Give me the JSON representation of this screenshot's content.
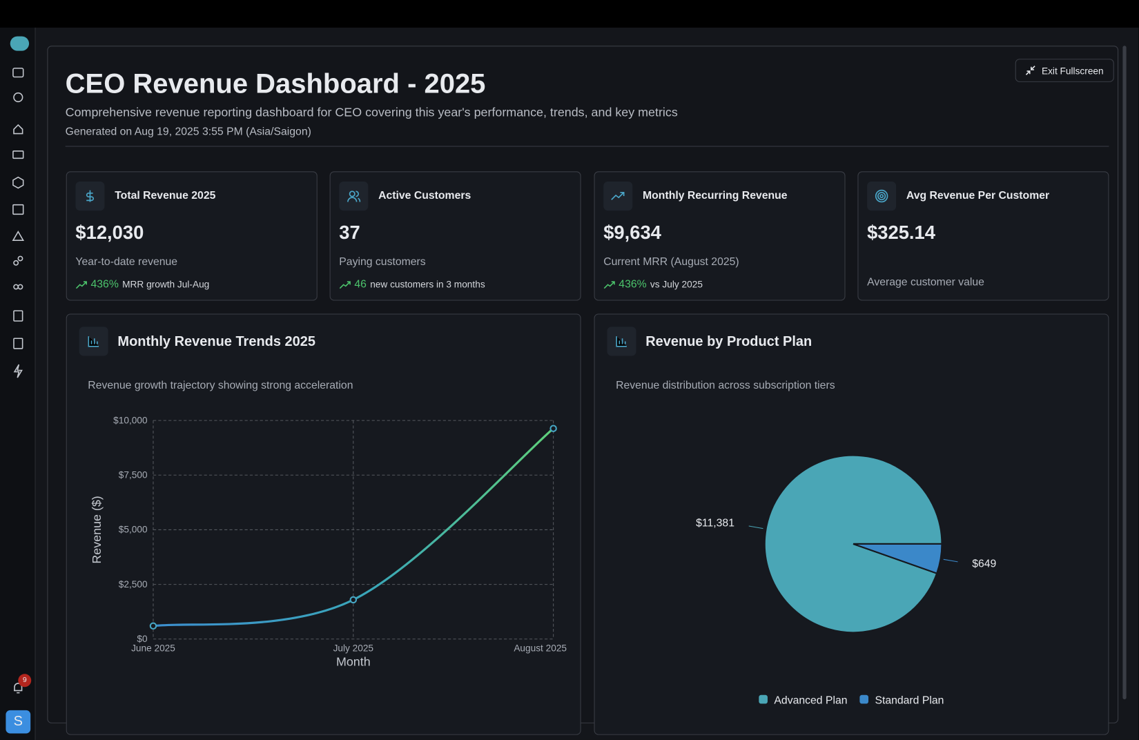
{
  "sidebar": {
    "notifications": "9",
    "avatar": "S"
  },
  "header": {
    "title": "CEO Revenue Dashboard - 2025",
    "subtitle": "Comprehensive revenue reporting dashboard for CEO covering this year's performance, trends, and key metrics",
    "generated": "Generated on Aug 19, 2025 3:55 PM (Asia/Saigon)",
    "button": "Exit Fullscreen"
  },
  "kpis": [
    {
      "title": "Total Revenue 2025",
      "value": "$12,030",
      "description": "Year-to-date revenue",
      "trend": {
        "value": "436%",
        "text": "MRR growth Jul-Aug"
      }
    },
    {
      "title": "Active Customers",
      "value": "37",
      "description": "Paying customers",
      "trend": {
        "value": "46",
        "text": "new customers in 3 months"
      }
    },
    {
      "title": "Monthly Recurring Revenue",
      "value": "$9,634",
      "description": "Current MRR (August 2025)",
      "trend": {
        "value": "436%",
        "text": "vs July 2025"
      }
    },
    {
      "title": "Avg Revenue Per Customer",
      "value": "$325.14",
      "description": "Average customer value"
    }
  ],
  "chart_data": [
    {
      "type": "line",
      "title": "Monthly Revenue Trends 2025",
      "subtitle": "Revenue growth trajectory showing strong acceleration",
      "x_label": "Month",
      "y_label": "Revenue ($)",
      "categories": [
        "June 2025",
        "July 2025",
        "August 2025"
      ],
      "series": [
        {
          "name": "Revenue",
          "color": "#46a6c4",
          "values": [
            599,
            1797,
            9634
          ]
        }
      ],
      "ylim": [
        0,
        10000
      ],
      "yticks": [
        {
          "value": 0,
          "label": "$0"
        },
        {
          "value": 2500,
          "label": "$2,500"
        },
        {
          "value": 5000,
          "label": "$5,000"
        },
        {
          "value": 7500,
          "label": "$7,500"
        },
        {
          "value": 10000,
          "label": "$10,000"
        }
      ],
      "grid": true
    },
    {
      "type": "pie",
      "title": "Revenue by Product Plan",
      "subtitle": "Revenue distribution across subscription tiers",
      "categories": [
        "Advanced Plan",
        "Standard Plan"
      ],
      "values": [
        11381,
        649
      ],
      "value_labels": [
        "$11,381",
        "$649"
      ],
      "colors": [
        "#4aa6b6",
        "#3b88c9"
      ]
    }
  ]
}
